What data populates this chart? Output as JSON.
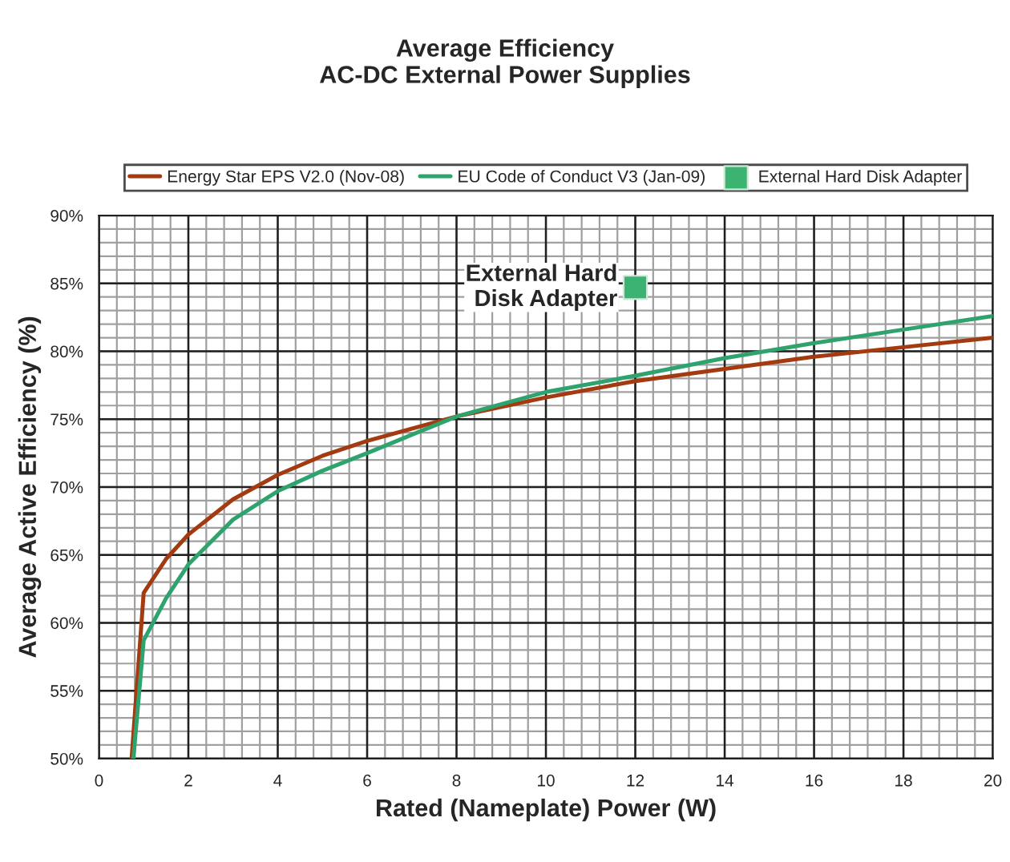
{
  "chart_data": {
    "type": "line",
    "title": "Average Efficiency\nAC-DC External Power Supplies",
    "xlabel": "Rated (Nameplate) Power (W)",
    "ylabel": "Average Active Efficiency (%)",
    "series": [
      {
        "name": "Energy Star EPS V2.0 (Nov-08)",
        "color": "#a33a10",
        "x": [
          0.73,
          1.0,
          1.5,
          2,
          3,
          4,
          5,
          6,
          8,
          10,
          12,
          14,
          16,
          18,
          20
        ],
        "values": [
          50,
          62.2,
          64.7,
          66.5,
          69.1,
          70.9,
          72.3,
          73.4,
          75.2,
          76.6,
          77.8,
          78.7,
          79.6,
          80.3,
          81.0
        ]
      },
      {
        "name": "EU Code of Conduct V3 (Jan-09)",
        "color": "#2ea36e",
        "x": [
          0.77,
          1.0,
          1.5,
          2,
          3,
          4,
          5,
          6,
          8,
          10,
          12,
          14,
          16,
          18,
          20
        ],
        "values": [
          50,
          58.7,
          61.8,
          64.3,
          67.6,
          69.7,
          71.2,
          72.5,
          75.2,
          77.0,
          78.2,
          79.5,
          80.6,
          81.6,
          82.6
        ]
      },
      {
        "name": "External Hard Disk Adapter",
        "type": "scatter",
        "marker": "square",
        "color": "#3cb371",
        "x": [
          12
        ],
        "values": [
          84.7
        ]
      }
    ],
    "annotations": [
      {
        "text": "External Hard\nDisk Adapter",
        "x": 12,
        "y": 84.7
      }
    ],
    "xlim": [
      0,
      20
    ],
    "xticks": [
      0,
      2,
      4,
      6,
      8,
      10,
      12,
      14,
      16,
      18,
      20
    ],
    "ylim": [
      50,
      90
    ],
    "yticks": [
      {
        "value": 50,
        "label": "50%"
      },
      {
        "value": 55,
        "label": "55%"
      },
      {
        "value": 60,
        "label": "60%"
      },
      {
        "value": 65,
        "label": "65%"
      },
      {
        "value": 70,
        "label": "70%"
      },
      {
        "value": 75,
        "label": "75%"
      },
      {
        "value": 80,
        "label": "80%"
      },
      {
        "value": 85,
        "label": "85%"
      },
      {
        "value": 90,
        "label": "90%"
      }
    ],
    "grid": true,
    "legend": "top",
    "line_style": "solid"
  }
}
